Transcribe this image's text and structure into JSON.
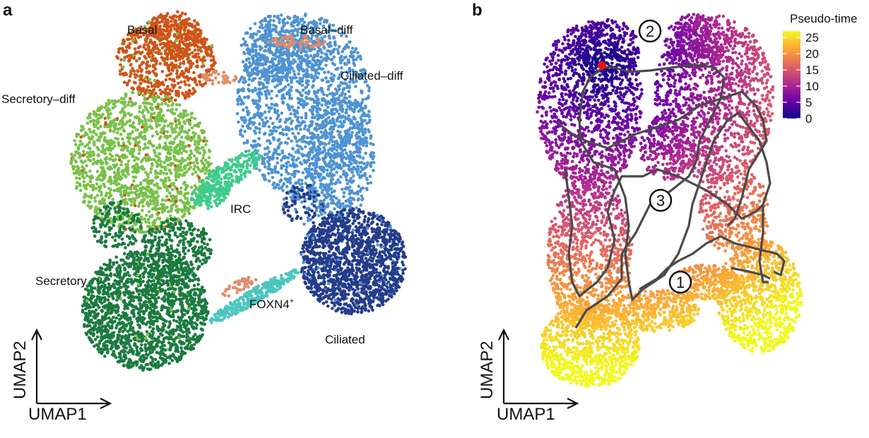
{
  "chart_data": [
    {
      "type": "scatter",
      "panel_label": "a",
      "xlabel": "UMAP1",
      "ylabel": "UMAP2",
      "clusters": [
        {
          "name": "Basal",
          "color": "#cf5417"
        },
        {
          "name": "Basal–diff",
          "color": "#e08c68"
        },
        {
          "name": "Ciliated–diff",
          "color": "#4f93d3"
        },
        {
          "name": "Secretory–diff",
          "color": "#79c14a"
        },
        {
          "name": "IRC",
          "color": "#3fcc8c"
        },
        {
          "name": "Secretory",
          "color": "#1c7a3f"
        },
        {
          "name": "FOXN4",
          "superscript": "+",
          "color": "#4cc6be"
        },
        {
          "name": "Ciliated",
          "color": "#243c8b"
        }
      ]
    },
    {
      "type": "scatter",
      "panel_label": "b",
      "xlabel": "UMAP1",
      "ylabel": "UMAP2",
      "colorbar": {
        "title": "Pseudo-time",
        "ticks": [
          0,
          5,
          10,
          15,
          20,
          25
        ],
        "range": [
          0,
          27
        ],
        "colormap": [
          "#0d0887",
          "#6a00a8",
          "#b12a90",
          "#e16462",
          "#fca636",
          "#f0f921"
        ]
      },
      "trajectory_color": "#4a4a4a",
      "root_color": "#ee1111",
      "branch_markers": [
        "1",
        "2",
        "3"
      ]
    }
  ]
}
